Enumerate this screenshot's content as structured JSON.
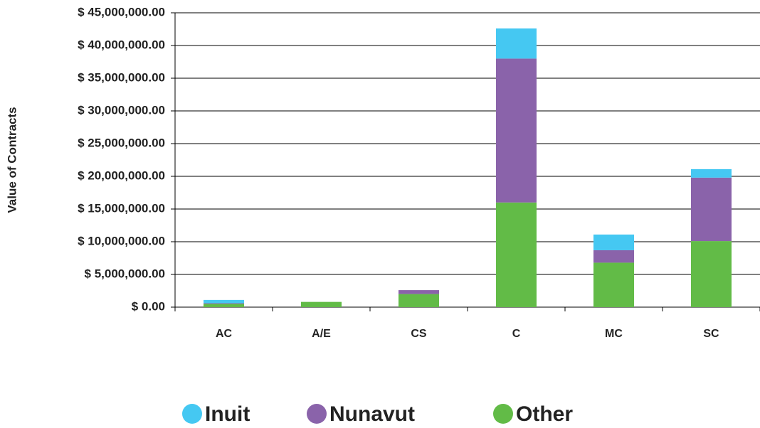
{
  "chart_data": {
    "type": "stacked_bar",
    "y_label": "Value of Contracts",
    "categories": [
      "AC",
      "A/E",
      "CS",
      "C",
      "MC",
      "SC"
    ],
    "series": [
      {
        "name": "Inuit",
        "color": "#45c8f2",
        "values": [
          500000,
          0,
          0,
          4600000,
          2400000,
          1300000
        ]
      },
      {
        "name": "Nunavut",
        "color": "#8a63aa",
        "values": [
          100000,
          0,
          600000,
          22000000,
          1900000,
          9700000
        ]
      },
      {
        "name": "Other",
        "color": "#62bb47",
        "values": [
          500000,
          800000,
          2000000,
          16000000,
          6800000,
          10100000
        ]
      }
    ],
    "ylim": [
      0,
      45000000
    ],
    "yticks": [
      {
        "value": 0,
        "label": "$ 0.00"
      },
      {
        "value": 5000000,
        "label": "$ 5,000,000.00"
      },
      {
        "value": 10000000,
        "label": "$ 10,000,000.00"
      },
      {
        "value": 15000000,
        "label": "$ 15,000,000.00"
      },
      {
        "value": 20000000,
        "label": "$ 20,000,000.00"
      },
      {
        "value": 25000000,
        "label": "$ 25,000,000.00"
      },
      {
        "value": 30000000,
        "label": "$ 30,000,000.00"
      },
      {
        "value": 35000000,
        "label": "$ 35,000,000.00"
      },
      {
        "value": 40000000,
        "label": "$ 40,000,000.00"
      },
      {
        "value": 45000000,
        "label": "$ 45,000,000.00"
      }
    ],
    "grid": true,
    "legend": "bottom"
  }
}
